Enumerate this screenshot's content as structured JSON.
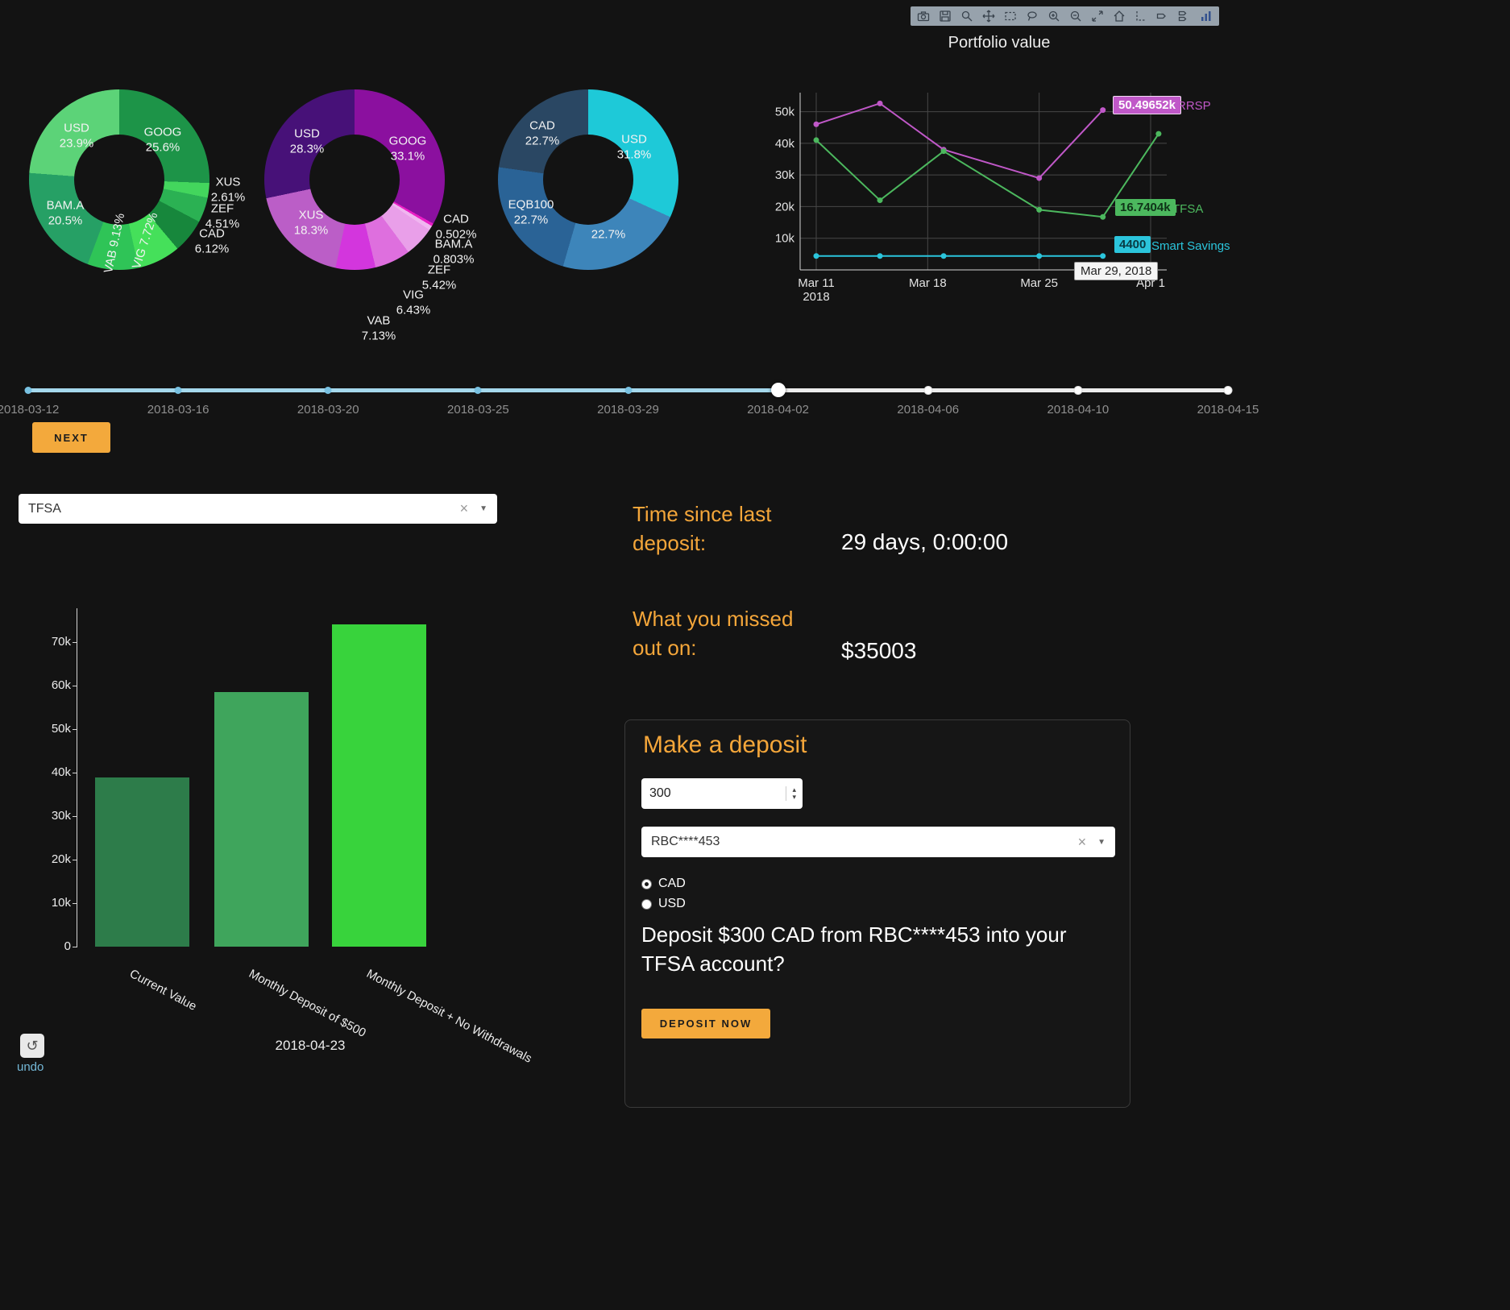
{
  "modebar": {
    "icons": [
      "camera",
      "save",
      "zoom",
      "pan",
      "box-select",
      "lasso",
      "zoom-in",
      "zoom-out",
      "autoscale",
      "reset-axes",
      "spike-lines",
      "hover-closest",
      "hover-compare",
      "plotly-logo"
    ]
  },
  "portfolio_chart": {
    "type": "line",
    "title": "Portfolio value",
    "y_ticks": [
      "10k",
      "20k",
      "30k",
      "40k",
      "50k"
    ],
    "y_tick_values": [
      10000,
      20000,
      30000,
      40000,
      50000
    ],
    "ylim": [
      0,
      56000
    ],
    "x_ticks": [
      {
        "label": "Mar 11",
        "sub": "2018",
        "day": 0
      },
      {
        "label": "Mar 18",
        "day": 7
      },
      {
        "label": "Mar 25",
        "day": 14
      },
      {
        "label": "Apr 1",
        "day": 21
      }
    ],
    "tooltip": "Mar 29, 2018",
    "series": [
      {
        "name": "RRSP",
        "color": "#c058c8",
        "label": "50.49652k",
        "points": [
          [
            0,
            46000
          ],
          [
            4,
            52600
          ],
          [
            8,
            38000
          ],
          [
            14,
            29000
          ],
          [
            18,
            50496.52
          ]
        ]
      },
      {
        "name": "TFSA",
        "color": "#4cb85e",
        "label": "16.7404k",
        "points": [
          [
            0,
            41000
          ],
          [
            4,
            22000
          ],
          [
            8,
            37500
          ],
          [
            14,
            19000
          ],
          [
            18,
            16740.4
          ],
          [
            21.5,
            43000
          ]
        ]
      },
      {
        "name": "Smart Savings",
        "color": "#2bc5dc",
        "label": "4400",
        "points": [
          [
            0,
            4400
          ],
          [
            4,
            4400
          ],
          [
            8,
            4400
          ],
          [
            14,
            4400
          ],
          [
            18,
            4400
          ]
        ]
      }
    ]
  },
  "donuts": [
    {
      "name": "allocation-donut-1",
      "slices": [
        {
          "label": "GOOG",
          "pct": "25.6%",
          "value": 25.6,
          "color": "#1d9448"
        },
        {
          "label": "XUS",
          "pct": "2.61%",
          "value": 2.61,
          "color": "#43d65d"
        },
        {
          "label": "ZEF",
          "pct": "4.51%",
          "value": 4.51,
          "color": "#2bb153"
        },
        {
          "label": "CAD",
          "pct": "6.12%",
          "value": 6.12,
          "color": "#17873c"
        },
        {
          "label": "VIG",
          "pct": "7.72%",
          "value": 7.72,
          "color": "#45e05a"
        },
        {
          "label": "VAB",
          "pct": "9.13%",
          "value": 9.13,
          "color": "#2fc457"
        },
        {
          "label": "BAM.A",
          "pct": "20.5%",
          "value": 20.5,
          "color": "#26a065"
        },
        {
          "label": "USD",
          "pct": "23.9%",
          "value": 23.9,
          "color": "#5cd378"
        }
      ]
    },
    {
      "name": "allocation-donut-2",
      "slices": [
        {
          "label": "GOOG",
          "pct": "33.1%",
          "value": 33.1,
          "color": "#8b109f"
        },
        {
          "label": "CAD",
          "pct": "0.502%",
          "value": 0.502,
          "color": "#e91ec4"
        },
        {
          "label": "BAM.A",
          "pct": "0.803%",
          "value": 0.803,
          "color": "#f0b6f0"
        },
        {
          "label": "ZEF",
          "pct": "5.42%",
          "value": 5.42,
          "color": "#e99fe9"
        },
        {
          "label": "VIG",
          "pct": "6.43%",
          "value": 6.43,
          "color": "#de6fde"
        },
        {
          "label": "VAB",
          "pct": "7.13%",
          "value": 7.13,
          "color": "#d336dd"
        },
        {
          "label": "XUS",
          "pct": "18.3%",
          "value": 18.3,
          "color": "#bb5ec7"
        },
        {
          "label": "USD",
          "pct": "28.3%",
          "value": 28.3,
          "color": "#471178"
        }
      ]
    },
    {
      "name": "allocation-donut-3",
      "slices": [
        {
          "label": "USD",
          "pct": "31.8%",
          "value": 31.8,
          "color": "#1ec9d8"
        },
        {
          "label": "",
          "pct": "22.7%",
          "value": 22.7,
          "color": "#3d85ba"
        },
        {
          "label": "EQB100",
          "pct": "22.7%",
          "value": 22.7,
          "color": "#2a6396"
        },
        {
          "label": "CAD",
          "pct": "22.7%",
          "value": 22.7,
          "color": "#2a4763"
        }
      ]
    }
  ],
  "slider": {
    "dates": [
      "2018-03-12",
      "2018-03-16",
      "2018-03-20",
      "2018-03-25",
      "2018-03-29",
      "2018-04-02",
      "2018-04-06",
      "2018-04-10",
      "2018-04-15"
    ],
    "active_index": 5
  },
  "next_button": "NEXT",
  "account_select": {
    "value": "TFSA"
  },
  "stats": {
    "time_since": {
      "label": "Time since last deposit:",
      "value": "29 days, 0:00:00"
    },
    "missed": {
      "label": "What you missed out on:",
      "value": "$35003"
    }
  },
  "projection_chart": {
    "type": "bar",
    "categories": [
      "Current Value",
      "Monthly Deposit of $500",
      "Monthly Deposit + No Withdrawals"
    ],
    "values": [
      38900,
      58500,
      74000
    ],
    "colors": [
      "#2d7c4a",
      "#3fa55c",
      "#38d33c"
    ],
    "y_ticks": [
      "0",
      "10k",
      "20k",
      "30k",
      "40k",
      "50k",
      "60k",
      "70k"
    ],
    "y_tick_values": [
      0,
      10000,
      20000,
      30000,
      40000,
      50000,
      60000,
      70000
    ],
    "ylim": [
      0,
      78000
    ],
    "xlabel": "2018-04-23"
  },
  "deposit": {
    "heading": "Make a deposit",
    "amount_value": "300",
    "account_value": "RBC****453",
    "currency_options": [
      "CAD",
      "USD"
    ],
    "selected_currency": "CAD",
    "confirm_text": "Deposit $300 CAD from RBC****453 into your TFSA account?",
    "submit_label": "DEPOSIT NOW"
  },
  "undo": {
    "label": "undo"
  },
  "colors": {
    "accent_orange": "#f3a93c",
    "background": "#131313",
    "slider_blue": "#a5d8ec"
  }
}
